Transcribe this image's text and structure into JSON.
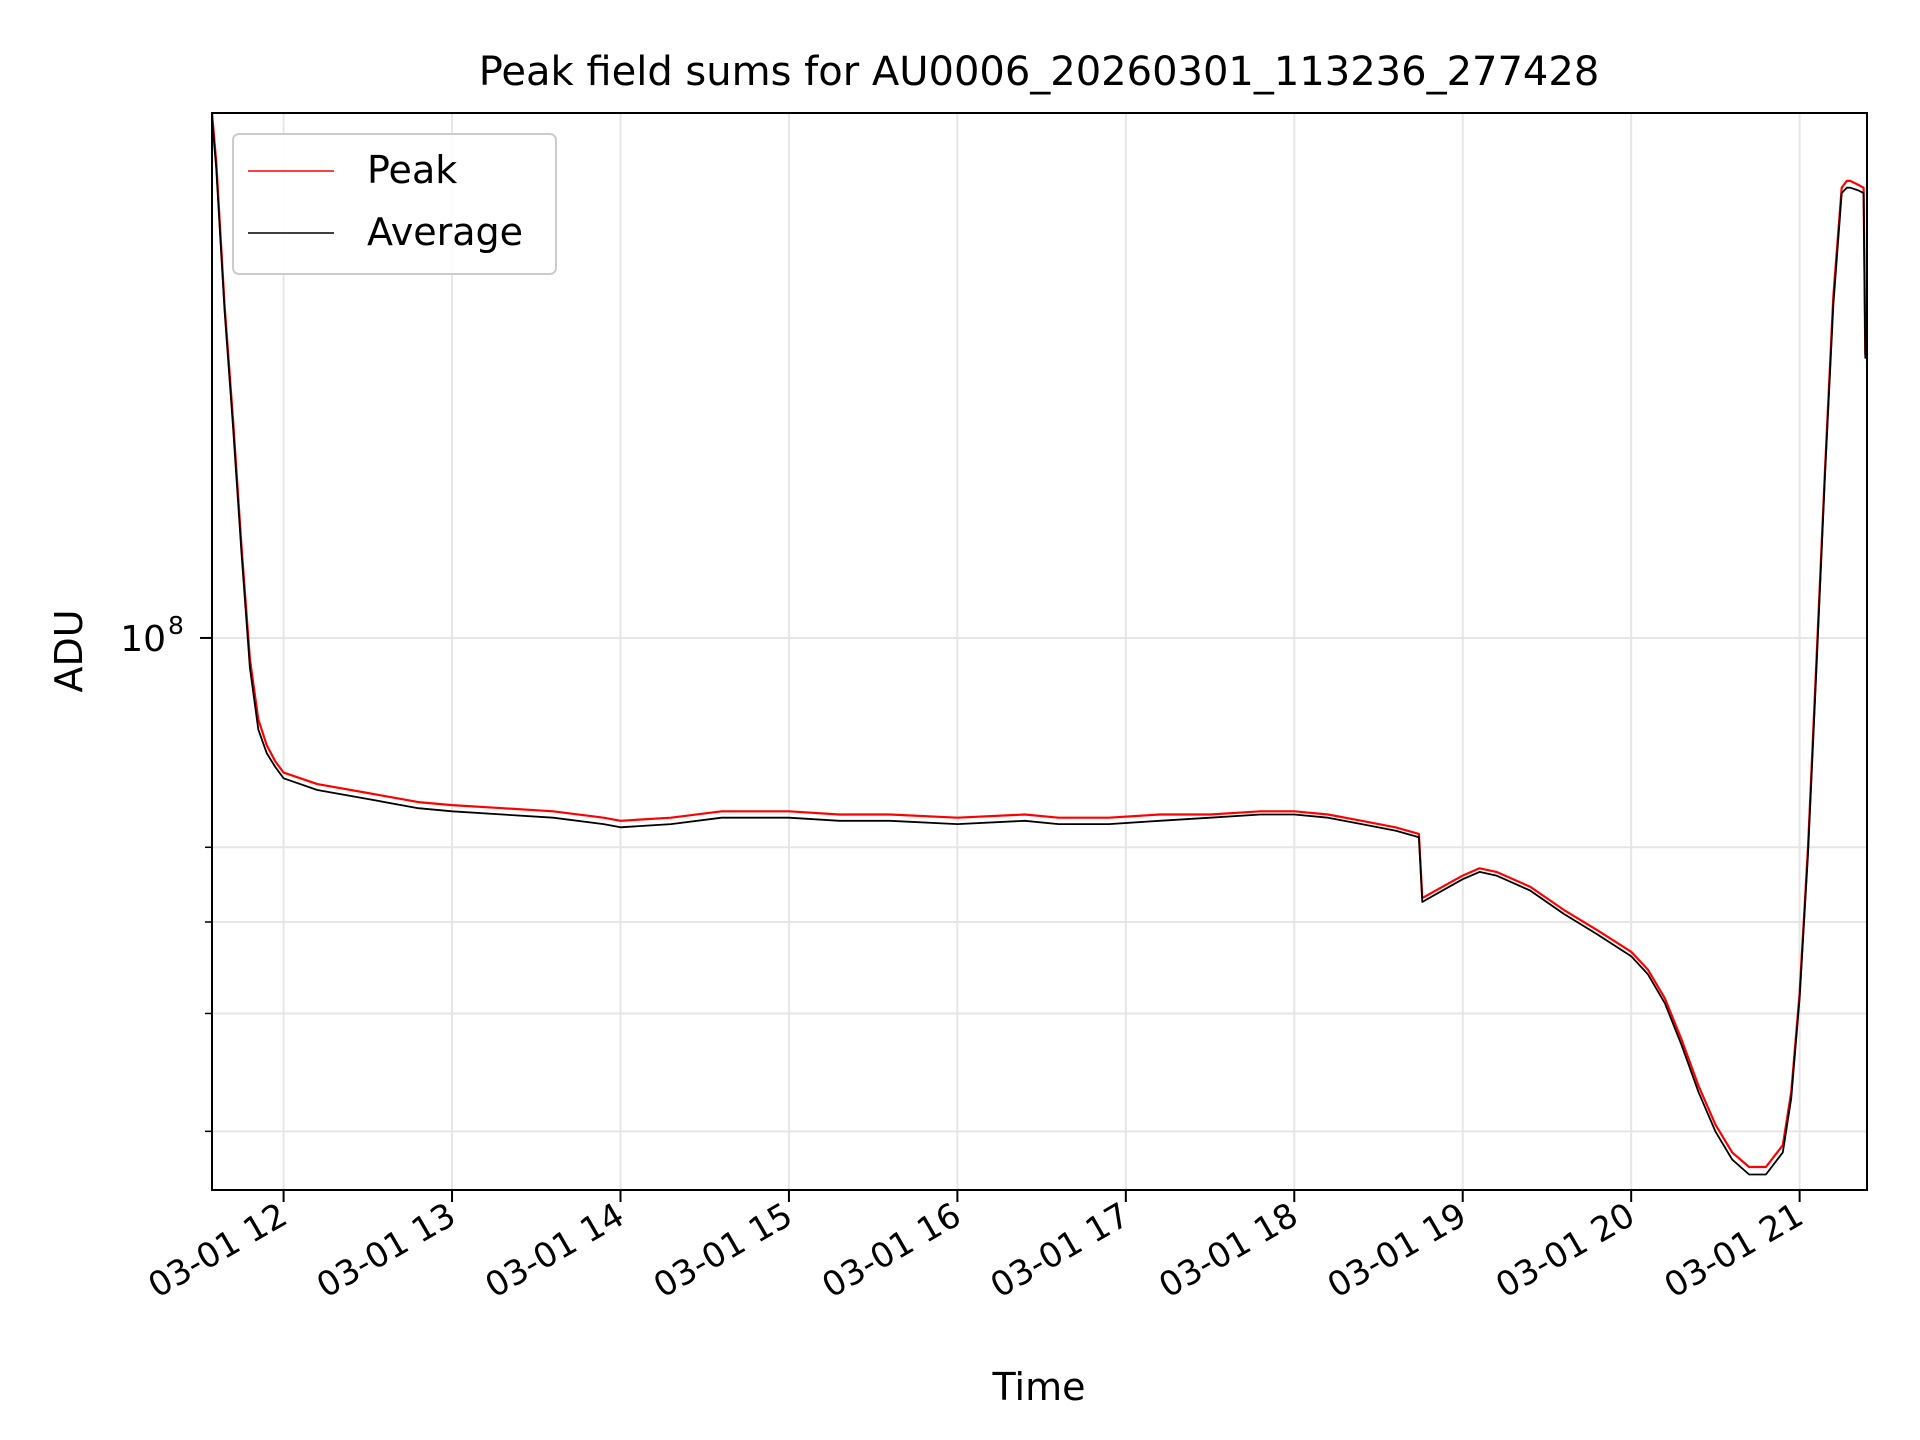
{
  "chart_data": {
    "type": "line",
    "title": "Peak field sums for AU0006_20260301_113236_277428",
    "xlabel": "Time",
    "ylabel": "ADU",
    "yscale": "log",
    "ylim": [
      26000000,
      360000000
    ],
    "xlim_hours": [
      11.575,
      21.4
    ],
    "grid": true,
    "legend_position": "upper-left",
    "x_ticks": [
      {
        "hour": 12,
        "label": "03-01 12"
      },
      {
        "hour": 13,
        "label": "03-01 13"
      },
      {
        "hour": 14,
        "label": "03-01 14"
      },
      {
        "hour": 15,
        "label": "03-01 15"
      },
      {
        "hour": 16,
        "label": "03-01 16"
      },
      {
        "hour": 17,
        "label": "03-01 17"
      },
      {
        "hour": 18,
        "label": "03-01 18"
      },
      {
        "hour": 19,
        "label": "03-01 19"
      },
      {
        "hour": 20,
        "label": "03-01 20"
      },
      {
        "hour": 21,
        "label": "03-01 21"
      }
    ],
    "y_major_ticks": [
      {
        "value": 100000000,
        "label_base": "10",
        "label_exp": "8"
      }
    ],
    "y_minor_ticks": [
      30000000,
      40000000,
      50000000,
      60000000
    ],
    "series": [
      {
        "name": "Peak",
        "color": "#ff0000",
        "x": [
          11.575,
          11.6,
          11.65,
          11.7,
          11.75,
          11.8,
          11.85,
          11.9,
          11.95,
          12.0,
          12.2,
          12.5,
          12.8,
          13.0,
          13.3,
          13.6,
          13.9,
          14.0,
          14.3,
          14.6,
          15.0,
          15.3,
          15.6,
          16.0,
          16.4,
          16.6,
          16.9,
          17.2,
          17.5,
          17.8,
          18.0,
          18.2,
          18.4,
          18.6,
          18.74,
          18.76,
          18.8,
          19.0,
          19.1,
          19.2,
          19.4,
          19.6,
          19.8,
          20.0,
          20.1,
          20.2,
          20.3,
          20.4,
          20.5,
          20.6,
          20.7,
          20.8,
          20.9,
          20.95,
          21.0,
          21.05,
          21.1,
          21.15,
          21.2,
          21.25,
          21.28,
          21.3,
          21.35,
          21.38,
          21.39,
          21.4
        ],
        "y": [
          360000000,
          320000000,
          225000000,
          170000000,
          125000000,
          95000000,
          82000000,
          77000000,
          74000000,
          72000000,
          70000000,
          68500000,
          67000000,
          66500000,
          66000000,
          65500000,
          64500000,
          64000000,
          64500000,
          65500000,
          65500000,
          65000000,
          65000000,
          64500000,
          65000000,
          64500000,
          64500000,
          65000000,
          65000000,
          65500000,
          65500000,
          65000000,
          64000000,
          63000000,
          62000000,
          53000000,
          53500000,
          56000000,
          57000000,
          56500000,
          54500000,
          51500000,
          49000000,
          46500000,
          44500000,
          41500000,
          37500000,
          33500000,
          30500000,
          28500000,
          27500000,
          27500000,
          29000000,
          33000000,
          42000000,
          60000000,
          95000000,
          150000000,
          230000000,
          300000000,
          305000000,
          305000000,
          302000000,
          300000000,
          200000000,
          205000000
        ]
      },
      {
        "name": "Average",
        "color": "#000000",
        "x": [
          11.575,
          11.6,
          11.65,
          11.7,
          11.75,
          11.8,
          11.85,
          11.9,
          11.95,
          12.0,
          12.2,
          12.5,
          12.8,
          13.0,
          13.3,
          13.6,
          13.9,
          14.0,
          14.3,
          14.6,
          15.0,
          15.3,
          15.6,
          16.0,
          16.4,
          16.6,
          16.9,
          17.2,
          17.5,
          17.8,
          18.0,
          18.2,
          18.4,
          18.6,
          18.74,
          18.76,
          18.8,
          19.0,
          19.1,
          19.2,
          19.4,
          19.6,
          19.8,
          20.0,
          20.1,
          20.2,
          20.3,
          20.4,
          20.5,
          20.6,
          20.7,
          20.8,
          20.9,
          20.95,
          21.0,
          21.05,
          21.1,
          21.15,
          21.2,
          21.25,
          21.28,
          21.3,
          21.35,
          21.38,
          21.39,
          21.4
        ],
        "y": [
          355000000,
          315000000,
          222000000,
          167000000,
          123000000,
          93000000,
          80000000,
          75500000,
          73000000,
          71000000,
          69000000,
          67500000,
          66000000,
          65500000,
          65000000,
          64500000,
          63500000,
          63000000,
          63500000,
          64500000,
          64500000,
          64000000,
          64000000,
          63500000,
          64000000,
          63500000,
          63500000,
          64000000,
          64500000,
          65000000,
          65000000,
          64500000,
          63500000,
          62500000,
          61500000,
          52500000,
          53000000,
          55500000,
          56500000,
          56000000,
          54000000,
          51000000,
          48500000,
          46000000,
          44000000,
          41000000,
          37000000,
          33000000,
          30000000,
          28000000,
          27000000,
          27000000,
          28500000,
          32500000,
          41500000,
          59000000,
          93000000,
          148000000,
          225000000,
          296000000,
          300000000,
          300000000,
          298000000,
          296000000,
          198000000,
          202000000
        ]
      }
    ]
  }
}
